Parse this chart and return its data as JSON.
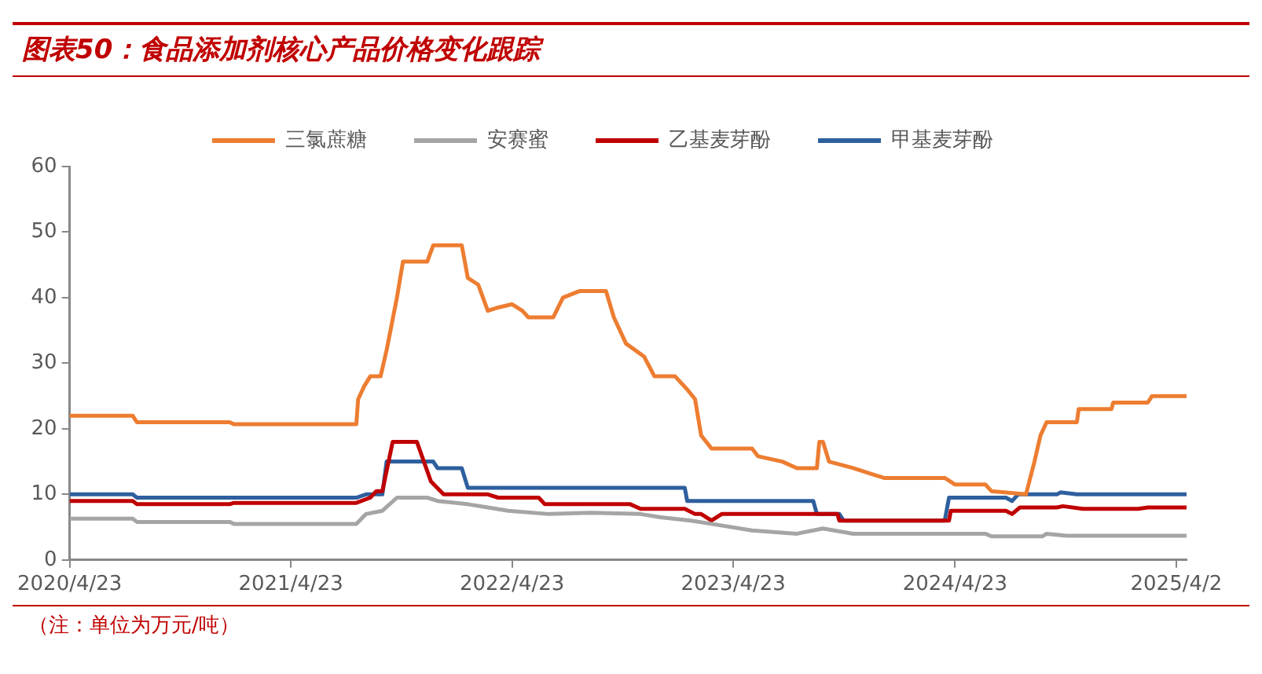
{
  "chart_data": {
    "type": "line",
    "title": "图表50：食品添加剂核心产品价格变化跟踪",
    "annotations": [
      "（注：单位为万元/吨）"
    ],
    "xlim": [
      "2020-04-23",
      "2025-05-10"
    ],
    "xticks": [
      {
        "value": "2020-04-23",
        "label": "2020/4/23"
      },
      {
        "value": "2021-04-23",
        "label": "2021/4/23"
      },
      {
        "value": "2022-04-23",
        "label": "2022/4/23"
      },
      {
        "value": "2023-04-23",
        "label": "2023/4/23"
      },
      {
        "value": "2024-04-23",
        "label": "2024/4/23"
      },
      {
        "value": "2025-04-23",
        "label": "2025/4/2"
      }
    ],
    "ylim": [
      0,
      60
    ],
    "yticks": [
      0,
      10,
      20,
      30,
      40,
      50,
      60
    ],
    "grid": false,
    "legend": "top",
    "marker": "none",
    "line_style": "solid",
    "series": [
      {
        "name": "三氯蔗糖",
        "color": "#ed7d31",
        "x": [
          "2020-04-23",
          "2020-08-05",
          "2020-08-12",
          "2021-01-12",
          "2021-01-19",
          "2021-08-09",
          "2021-08-12",
          "2021-08-22",
          "2021-09-01",
          "2021-09-18",
          "2021-09-28",
          "2021-10-15",
          "2021-10-25",
          "2021-12-04",
          "2021-12-14",
          "2022-01-30",
          "2022-02-09",
          "2022-02-26",
          "2022-03-14",
          "2022-03-31",
          "2022-04-23",
          "2022-05-10",
          "2022-05-20",
          "2022-06-30",
          "2022-07-16",
          "2022-08-12",
          "2022-09-25",
          "2022-10-08",
          "2022-10-28",
          "2022-11-27",
          "2022-12-14",
          "2023-01-17",
          "2023-02-06",
          "2023-02-19",
          "2023-03-01",
          "2023-03-18",
          "2023-05-24",
          "2023-06-03",
          "2023-07-13",
          "2023-08-06",
          "2023-09-08",
          "2023-09-12",
          "2023-09-18",
          "2023-09-28",
          "2023-11-07",
          "2023-12-11",
          "2023-12-28",
          "2024-04-06",
          "2024-04-23",
          "2024-06-12",
          "2024-06-22",
          "2024-08-18",
          "2024-09-01",
          "2024-09-11",
          "2024-09-21",
          "2024-11-10",
          "2024-11-13",
          "2025-01-06",
          "2025-01-09",
          "2025-03-07",
          "2025-03-14",
          "2025-05-10"
        ],
        "values": [
          22,
          22,
          21,
          21,
          20.7,
          20.7,
          24.5,
          26.5,
          28,
          28,
          32,
          40,
          45.5,
          45.5,
          48,
          48,
          43,
          42,
          38,
          38.5,
          39,
          38,
          37,
          37,
          40,
          41,
          41,
          37,
          33,
          31,
          28,
          28,
          26,
          24.5,
          19,
          17,
          17,
          15.8,
          15,
          14,
          14,
          18,
          18,
          15,
          14,
          13,
          12.5,
          12.5,
          11.5,
          11.5,
          10.5,
          10,
          15,
          19,
          21,
          21,
          23,
          23,
          24,
          24,
          25,
          25
        ]
      },
      {
        "name": "安赛蜜",
        "color": "#a5a5a5",
        "x": [
          "2020-04-23",
          "2020-08-05",
          "2020-08-12",
          "2021-01-12",
          "2021-01-19",
          "2021-08-09",
          "2021-08-25",
          "2021-09-21",
          "2021-10-15",
          "2021-12-04",
          "2021-12-21",
          "2022-02-09",
          "2022-03-14",
          "2022-04-17",
          "2022-06-23",
          "2022-08-29",
          "2022-11-21",
          "2022-12-24",
          "2023-02-12",
          "2023-03-18",
          "2023-05-24",
          "2023-08-06",
          "2023-09-18",
          "2023-11-07",
          "2024-06-12",
          "2024-06-22",
          "2024-09-14",
          "2024-09-21",
          "2024-10-24",
          "2025-05-10"
        ],
        "values": [
          6.3,
          6.3,
          5.8,
          5.8,
          5.5,
          5.5,
          7,
          7.5,
          9.5,
          9.5,
          9,
          8.5,
          8,
          7.5,
          7,
          7.2,
          7,
          6.5,
          6,
          5.5,
          4.5,
          4,
          4.8,
          4,
          4,
          3.6,
          3.6,
          4,
          3.7,
          3.7
        ]
      },
      {
        "name": "乙基麦芽酚",
        "color": "#c00000",
        "x": [
          "2020-04-23",
          "2020-08-05",
          "2020-08-12",
          "2021-01-12",
          "2021-01-19",
          "2021-08-09",
          "2021-09-01",
          "2021-09-11",
          "2021-09-21",
          "2021-10-08",
          "2021-11-17",
          "2021-12-10",
          "2021-12-31",
          "2022-03-14",
          "2022-03-31",
          "2022-06-06",
          "2022-06-16",
          "2022-11-04",
          "2022-11-21",
          "2023-02-02",
          "2023-02-19",
          "2023-03-01",
          "2023-03-18",
          "2023-04-04",
          "2023-10-12",
          "2023-10-15",
          "2024-04-13",
          "2024-04-16",
          "2024-07-16",
          "2024-07-26",
          "2024-08-08",
          "2024-10-08",
          "2024-10-18",
          "2024-11-20",
          "2025-02-19",
          "2025-03-07",
          "2025-05-10"
        ],
        "values": [
          9,
          9,
          8.5,
          8.5,
          8.7,
          8.7,
          9.5,
          10.5,
          10.5,
          18,
          18,
          12,
          10,
          10,
          9.5,
          9.5,
          8.5,
          8.5,
          7.8,
          7.8,
          7,
          7,
          6,
          7,
          7,
          6,
          6,
          7.5,
          7.5,
          7,
          8,
          8,
          8.2,
          7.8,
          7.8,
          8,
          8
        ]
      },
      {
        "name": "甲基麦芽酚",
        "color": "#2e5f9e",
        "x": [
          "2020-04-23",
          "2020-08-05",
          "2020-08-12",
          "2021-08-09",
          "2021-08-25",
          "2021-09-21",
          "2021-09-28",
          "2021-12-14",
          "2021-12-21",
          "2022-01-30",
          "2022-02-09",
          "2023-02-02",
          "2023-02-06",
          "2023-09-02",
          "2023-09-08",
          "2023-10-15",
          "2023-10-22",
          "2024-04-06",
          "2024-04-13",
          "2024-07-16",
          "2024-07-26",
          "2024-08-05",
          "2024-10-08",
          "2024-10-14",
          "2024-11-10",
          "2025-05-10"
        ],
        "values": [
          10,
          10,
          9.5,
          9.5,
          10,
          10,
          15,
          15,
          14,
          14,
          11,
          11,
          9,
          9,
          7,
          7,
          6,
          6,
          9.5,
          9.5,
          9,
          10,
          10,
          10.3,
          10,
          10
        ]
      }
    ]
  }
}
